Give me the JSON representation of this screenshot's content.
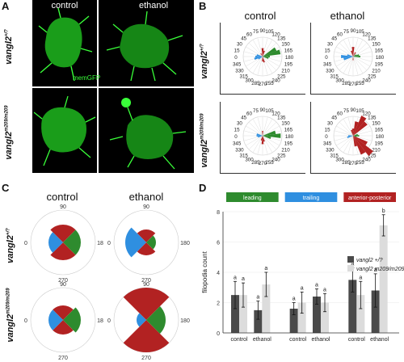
{
  "panels": {
    "A": {
      "label": "A",
      "col_titles": [
        "control",
        "ethanol"
      ],
      "scale_label": "memGFP"
    },
    "B": {
      "label": "B",
      "col_titles": [
        "control",
        "ethanol"
      ],
      "angles": [
        "0",
        "15",
        "30",
        "45",
        "60",
        "75",
        "90",
        "105",
        "120",
        "135",
        "150",
        "165",
        "180",
        "195",
        "210",
        "225",
        "240",
        "255",
        "270",
        "285",
        "300",
        "315",
        "330",
        "345"
      ]
    },
    "C": {
      "label": "C",
      "col_titles": [
        "control",
        "ethanol"
      ],
      "angle_labels": {
        "top": "90",
        "left": "0",
        "right": "180",
        "bottom": "270"
      }
    },
    "D": {
      "label": "D"
    }
  },
  "row_labels": {
    "wt": {
      "gene": "vangl2",
      "sup": "+/?"
    },
    "mut": {
      "gene": "vangl2",
      "sup": "m209/m209"
    }
  },
  "colors": {
    "leading": "#2e8b2e",
    "trailing": "#2f8fe0",
    "anterior_posterior": "#b22222",
    "wt_bar": "#4a4a4a",
    "mut_bar": "#dcdcdc",
    "gfp": "#39ff39"
  },
  "rose_data": {
    "wt_control": {
      "green": [
        [
          150,
          25
        ],
        [
          165,
          30
        ],
        [
          180,
          12
        ],
        [
          195,
          10
        ]
      ],
      "blue": [
        [
          0,
          12
        ],
        [
          345,
          14
        ],
        [
          15,
          10
        ],
        [
          330,
          8
        ]
      ],
      "red": [
        [
          90,
          14
        ],
        [
          105,
          10
        ],
        [
          270,
          8
        ],
        [
          255,
          10
        ],
        [
          60,
          6
        ]
      ]
    },
    "wt_ethanol": {
      "green": [
        [
          165,
          10
        ],
        [
          180,
          12
        ],
        [
          150,
          6
        ]
      ],
      "blue": [
        [
          0,
          20
        ],
        [
          345,
          16
        ],
        [
          15,
          10
        ]
      ],
      "red": [
        [
          90,
          16
        ],
        [
          75,
          10
        ],
        [
          120,
          8
        ],
        [
          270,
          6
        ]
      ]
    },
    "mut_control": {
      "green": [
        [
          165,
          22
        ],
        [
          180,
          30
        ],
        [
          195,
          14
        ]
      ],
      "blue": [
        [
          0,
          10
        ],
        [
          345,
          8
        ],
        [
          15,
          10
        ]
      ],
      "red": [
        [
          270,
          14
        ],
        [
          255,
          10
        ],
        [
          90,
          8
        ],
        [
          285,
          8
        ]
      ]
    },
    "mut_ethanol": {
      "green": [
        [
          165,
          8
        ],
        [
          180,
          10
        ],
        [
          195,
          6
        ]
      ],
      "blue": [
        [
          0,
          8
        ],
        [
          345,
          10
        ]
      ],
      "red": [
        [
          120,
          36
        ],
        [
          135,
          30
        ],
        [
          105,
          24
        ],
        [
          225,
          42
        ],
        [
          240,
          34
        ],
        [
          210,
          26
        ],
        [
          255,
          18
        ],
        [
          90,
          12
        ],
        [
          75,
          10
        ]
      ]
    }
  },
  "wedge_data": {
    "wt_control": {
      "leading": 0.55,
      "trailing": 0.45,
      "ap": 0.55
    },
    "wt_ethanol": {
      "leading": 0.3,
      "trailing": 0.65,
      "ap": 0.4
    },
    "mut_control": {
      "leading": 0.55,
      "trailing": 0.45,
      "ap": 0.45
    },
    "mut_ethanol": {
      "leading": 0.6,
      "trailing": 0.3,
      "ap": 1.0
    }
  },
  "chart_data": {
    "type": "bar",
    "facets": [
      "leading",
      "trailing",
      "anterior-posterior"
    ],
    "categories": [
      "control",
      "ethanol"
    ],
    "ylabel": "filopodia count",
    "ylim": [
      0,
      8
    ],
    "yticks": [
      0,
      2,
      4,
      6,
      8
    ],
    "series": [
      {
        "name": "vangl2 +/?",
        "values": [
          [
            2.5,
            1.5
          ],
          [
            1.6,
            2.4
          ],
          [
            3.5,
            2.8
          ]
        ],
        "errors": [
          [
            0.9,
            0.6
          ],
          [
            0.4,
            0.5
          ],
          [
            0.8,
            1.1
          ]
        ],
        "letters": [
          [
            "a",
            "a"
          ],
          [
            "a",
            "a"
          ],
          [
            "a",
            "a"
          ]
        ]
      },
      {
        "name": "vangl2 m209/m209",
        "values": [
          [
            2.5,
            3.2
          ],
          [
            2.0,
            2.0
          ],
          [
            2.5,
            7.1
          ]
        ],
        "errors": [
          [
            0.8,
            0.8
          ],
          [
            0.7,
            0.6
          ],
          [
            0.9,
            0.7
          ]
        ],
        "letters": [
          [
            "a",
            "a"
          ],
          [
            "a",
            "a"
          ],
          [
            "a",
            "b"
          ]
        ]
      }
    ],
    "facet_colors": [
      "#2e8b2e",
      "#2f8fe0",
      "#b22222"
    ],
    "legend": [
      "vangl2 +/?",
      "vangl2 m209/m209"
    ]
  }
}
